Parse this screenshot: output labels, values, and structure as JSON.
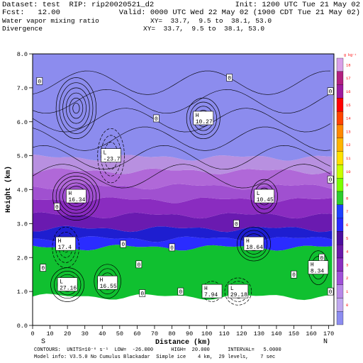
{
  "header": {
    "dataset_line": "Dataset: test  RIP: rip20020521_d2",
    "init_line": "Init: 1200 UTC Tue 21 May 02",
    "fcst_line": "Fcst:   12.00",
    "valid_line": "Valid: 0000 UTC Wed 22 May 02 (1900 CDT Tue 21 May 02)",
    "field1": "Water vapor mixing ratio",
    "xy1": "XY=  33.7,  9.5 to  38.1, 53.0",
    "field2": "Divergence",
    "xy2": "XY=  33.7,  9.5 to  38.1, 53.0"
  },
  "footer": {
    "contours_line": "CONTOURS:  UNITS=10⁻⁶ s⁻¹  LOW=  -26.000      HIGH=  20.000      INTERVAL=   5.0000",
    "model_line": "Model info: V3.5.0 No Cumulus Blackadar  Simple ice    4 km,  29 levels,    7 sec"
  },
  "colors": {
    "colorbar_top_to_bottom": [
      "#d9a0e8",
      "#b22080",
      "#9e1a9e",
      "#ff0000",
      "#ff4400",
      "#ff8800",
      "#ffb400",
      "#ffe000",
      "#c8ff00",
      "#7cff00",
      "#2ecc2e",
      "#1e40ff",
      "#2828ff",
      "#4b0ea0",
      "#6a1aaa",
      "#8a2ec0",
      "#a050d8",
      "#b888e8",
      "#c0a8f0",
      "#8c8cf0"
    ],
    "colorbar_label_color": "#ff0000"
  },
  "chart_data": {
    "type": "cross-section",
    "xlabel": "Distance (km)",
    "ylabel": "Height (km)",
    "xlim": [
      0,
      173
    ],
    "ylim": [
      0,
      8
    ],
    "xticks": [
      0,
      10,
      20,
      30,
      40,
      50,
      60,
      70,
      80,
      90,
      100,
      110,
      120,
      130,
      140,
      150,
      160,
      170
    ],
    "yticks": [
      "0.0",
      "1.0",
      "2.0",
      "3.0",
      "4.0",
      "5.0",
      "6.0",
      "7.0",
      "8.0"
    ],
    "left_end_label": "S",
    "right_end_label": "N",
    "colorbar_units": "g kg⁻¹",
    "colorbar_labels": [
      "0",
      "1",
      "2",
      "3",
      "4",
      "5",
      "6",
      "7",
      "8",
      "9",
      "10",
      "11",
      "12",
      "13",
      "14",
      "15",
      "16",
      "17",
      "18"
    ],
    "bands": [
      {
        "from": 0.0,
        "to": 0.85,
        "color": "#ffffff"
      },
      {
        "from": 0.85,
        "to": 2.3,
        "color": "#10c030"
      },
      {
        "from": 2.3,
        "to": 2.55,
        "color": "#2a2cff"
      },
      {
        "from": 2.55,
        "to": 2.85,
        "color": "#1e1ed0"
      },
      {
        "from": 2.85,
        "to": 3.25,
        "color": "#6a1ab0"
      },
      {
        "from": 3.25,
        "to": 3.7,
        "color": "#8a2cc0"
      },
      {
        "from": 3.7,
        "to": 4.1,
        "color": "#a050d0"
      },
      {
        "from": 4.1,
        "to": 4.55,
        "color": "#b068d8"
      },
      {
        "from": 4.55,
        "to": 4.95,
        "color": "#b890e0"
      },
      {
        "from": 4.95,
        "to": 8.0,
        "color": "#8c8cee"
      }
    ],
    "annotations": [
      {
        "text": "H",
        "value": "10.27",
        "x": 98,
        "y": 6.1
      },
      {
        "text": "L",
        "value": "-23.7",
        "x": 45,
        "y": 5.0
      },
      {
        "text": "H",
        "value": "16.34",
        "x": 25,
        "y": 3.8
      },
      {
        "text": "L",
        "value": "10.45",
        "x": 133,
        "y": 3.8
      },
      {
        "text": "H",
        "value": "17.4",
        "x": 19,
        "y": 2.4
      },
      {
        "text": "H",
        "value": "18.64",
        "x": 127,
        "y": 2.4
      },
      {
        "text": "H",
        "value": "8.34",
        "x": 164,
        "y": 1.7
      },
      {
        "text": "H",
        "value": "16.55",
        "x": 43,
        "y": 1.25
      },
      {
        "text": "L",
        "value": "27.16",
        "x": 20,
        "y": 1.2
      },
      {
        "text": "H",
        "value": "7.94",
        "x": 103,
        "y": 1.0
      },
      {
        "text": "L",
        "value": "29.18",
        "x": 118,
        "y": 1.0
      }
    ],
    "zero_labels": [
      {
        "text": "0",
        "x": 4,
        "y": 7.2
      },
      {
        "text": "0",
        "x": 113,
        "y": 7.3
      },
      {
        "text": "0",
        "x": 171,
        "y": 6.9
      },
      {
        "text": "0",
        "x": 71,
        "y": 6.1
      },
      {
        "text": "0",
        "x": 171,
        "y": 4.3
      },
      {
        "text": "0",
        "x": 14,
        "y": 3.5
      },
      {
        "text": "0",
        "x": 117,
        "y": 3.0
      },
      {
        "text": "0",
        "x": 52,
        "y": 2.4
      },
      {
        "text": "0",
        "x": 80,
        "y": 2.3
      },
      {
        "text": "0",
        "x": 166,
        "y": 2.0
      },
      {
        "text": "0",
        "x": 6,
        "y": 1.7
      },
      {
        "text": "0",
        "x": 61,
        "y": 1.8
      },
      {
        "text": "0",
        "x": 150,
        "y": 1.5
      },
      {
        "text": "0",
        "x": 63,
        "y": 0.95
      },
      {
        "text": "0",
        "x": 85,
        "y": 1.0
      },
      {
        "text": "0",
        "x": 171,
        "y": 1.0
      }
    ]
  }
}
